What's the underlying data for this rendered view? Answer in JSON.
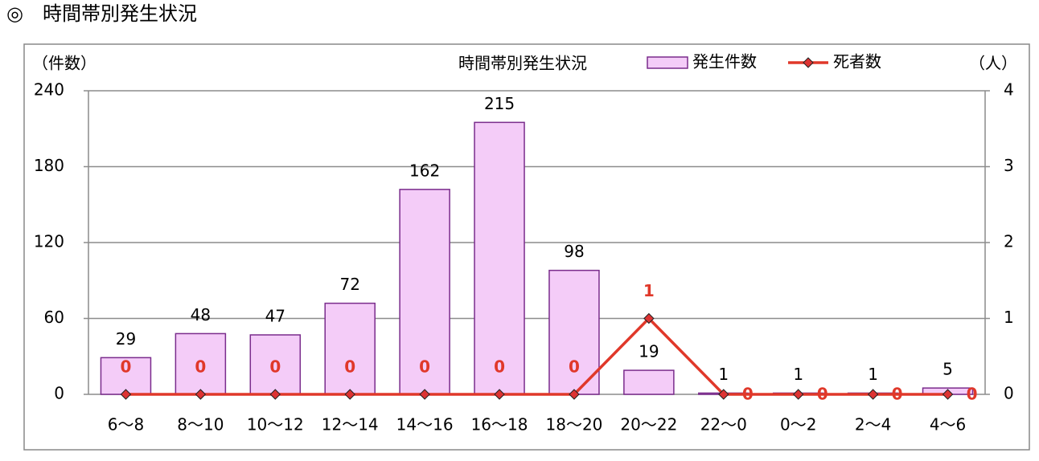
{
  "page_title": "◎　時間帯別発生状況",
  "chart_data": {
    "type": "combo",
    "title": "時間帯別発生状況",
    "y_label": "（件数）",
    "y2_label": "（人）",
    "categories": [
      "6～8",
      "8～10",
      "10～12",
      "12～14",
      "14～16",
      "16～18",
      "18～20",
      "20～22",
      "22～0",
      "0～2",
      "2～4",
      "4～6"
    ],
    "series": [
      {
        "name": "発生件数",
        "type": "bar",
        "color": "#f4ccf8",
        "edge_color": "#7a2c8c",
        "values": [
          29,
          48,
          47,
          72,
          162,
          215,
          98,
          19,
          1,
          1,
          1,
          5
        ]
      },
      {
        "name": "死者数",
        "type": "line",
        "axis": "y2",
        "color": "#e0382a",
        "values": [
          0,
          0,
          0,
          0,
          0,
          0,
          0,
          1,
          0,
          0,
          0,
          0
        ]
      }
    ],
    "ylim": [
      0,
      240
    ],
    "yticks": [
      0,
      60,
      120,
      180,
      240
    ],
    "y2lim": [
      0,
      4
    ],
    "y2ticks": [
      0,
      1,
      2,
      3,
      4
    ],
    "grid": true
  }
}
